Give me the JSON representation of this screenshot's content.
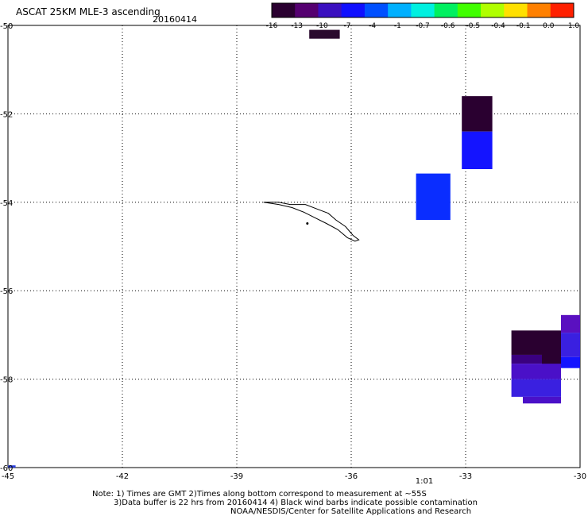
{
  "header": {
    "title": "ASCAT 25KM MLE-3 ascending",
    "date": "20160414"
  },
  "colorbar": {
    "labels": [
      "-16",
      "-13",
      "-10",
      "-7",
      "-4",
      "-1",
      "-0.7",
      "-0.6",
      "-0.5",
      "-0.4",
      "-0.1",
      "0.0",
      "1.0"
    ],
    "colors": [
      "#2a0030",
      "#550070",
      "#3a10c0",
      "#1010ff",
      "#0050ff",
      "#00b0ff",
      "#00f0e0",
      "#00f060",
      "#40ff00",
      "#b0ff00",
      "#ffe000",
      "#ff8000",
      "#ff2000"
    ]
  },
  "map": {
    "lon_labels": [
      "-45",
      "-42",
      "-39",
      "-36",
      "-33",
      "-30"
    ],
    "lat_labels": [
      "-50",
      "-52",
      "-54",
      "-56",
      "-58",
      "-60"
    ],
    "time_label": "1:01",
    "time_label_color": "#cc0000",
    "cells": [
      {
        "lon": [
          -37.1,
          -36.3
        ],
        "lat": [
          -50.1,
          -50.3
        ],
        "color": "#2a0a2e"
      },
      {
        "lon": [
          -33.1,
          -32.3
        ],
        "lat": [
          -51.6,
          -52.4
        ],
        "color": "#2a0030"
      },
      {
        "lon": [
          -33.1,
          -32.3
        ],
        "lat": [
          -52.4,
          -53.25
        ],
        "color": "#1414ff"
      },
      {
        "lon": [
          -34.3,
          -33.4
        ],
        "lat": [
          -53.35,
          -54.4
        ],
        "color": "#0a2dff"
      },
      {
        "lon": [
          -30.5,
          -30.0
        ],
        "lat": [
          -56.55,
          -56.95
        ],
        "color": "#5a10c0"
      },
      {
        "lon": [
          -31.0,
          -30.5
        ],
        "lat": [
          -56.9,
          -57.75
        ],
        "color": "#2a0030"
      },
      {
        "lon": [
          -30.5,
          -30.0
        ],
        "lat": [
          -56.95,
          -57.5
        ],
        "color": "#3a20e0"
      },
      {
        "lon": [
          -30.5,
          -30.0
        ],
        "lat": [
          -57.5,
          -57.75
        ],
        "color": "#1414ff"
      },
      {
        "lon": [
          -31.8,
          -31.0
        ],
        "lat": [
          -56.9,
          -57.45
        ],
        "color": "#2a0030"
      },
      {
        "lon": [
          -31.8,
          -31.0
        ],
        "lat": [
          -57.45,
          -57.65
        ],
        "color": "#3a0080"
      },
      {
        "lon": [
          -31.8,
          -30.5
        ],
        "lat": [
          -57.65,
          -58.0
        ],
        "color": "#4a10c8"
      },
      {
        "lon": [
          -31.8,
          -30.5
        ],
        "lat": [
          -58.0,
          -58.4
        ],
        "color": "#3a20e0"
      },
      {
        "lon": [
          -31.5,
          -30.5
        ],
        "lat": [
          -58.4,
          -58.55
        ],
        "color": "#4a10c8"
      },
      {
        "lon": [
          -45.0,
          -44.8
        ],
        "lat": [
          -59.95,
          -60.0
        ],
        "color": "#2a40e0"
      }
    ],
    "island_outline": [
      [
        -38.3,
        -54.0
      ],
      [
        -37.9,
        -54.0
      ],
      [
        -37.6,
        -54.05
      ],
      [
        -37.2,
        -54.05
      ],
      [
        -36.9,
        -54.15
      ],
      [
        -36.6,
        -54.25
      ],
      [
        -36.4,
        -54.4
      ],
      [
        -36.15,
        -54.55
      ],
      [
        -35.95,
        -54.75
      ],
      [
        -35.8,
        -54.85
      ],
      [
        -35.9,
        -54.88
      ],
      [
        -36.1,
        -54.8
      ],
      [
        -36.35,
        -54.62
      ],
      [
        -36.65,
        -54.48
      ],
      [
        -36.95,
        -54.35
      ],
      [
        -37.25,
        -54.22
      ],
      [
        -37.55,
        -54.12
      ],
      [
        -37.9,
        -54.05
      ],
      [
        -38.3,
        -54.0
      ]
    ]
  },
  "notes": [
    "Note: 1) Times are GMT 2)Times along bottom correspond to measurement at ~55S",
    "3)Data buffer is 22 hrs from 20160414 4) Black wind barbs indicate possible contamination",
    "NOAA/NESDIS/Center for Satellite Applications and Research"
  ]
}
